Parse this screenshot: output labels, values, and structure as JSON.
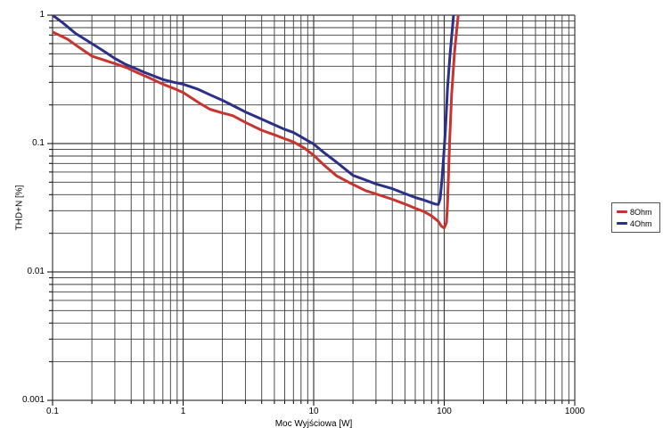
{
  "chart_data": {
    "type": "line",
    "title": "",
    "xlabel": "Moc Wyjściowa [W]",
    "ylabel": "THD+N [%]",
    "x_scale": "log",
    "y_scale": "log",
    "xlim": [
      0.1,
      1000
    ],
    "ylim": [
      0.001,
      1
    ],
    "grid": "log major+minor, both axes, dark thin lines",
    "grid_color": "#3c3c3c",
    "background_color": "#ffffff",
    "legend_position": "right-outside",
    "x_ticks": [
      {
        "value": 0.1,
        "label": "0.1"
      },
      {
        "value": 1,
        "label": "1"
      },
      {
        "value": 10,
        "label": "10"
      },
      {
        "value": 100,
        "label": "100"
      },
      {
        "value": 1000,
        "label": "1000"
      }
    ],
    "y_ticks": [
      {
        "value": 1,
        "label": "1"
      },
      {
        "value": 0.1,
        "label": "0.1"
      },
      {
        "value": 0.01,
        "label": "0.01"
      },
      {
        "value": 0.001,
        "label": "0.001"
      }
    ],
    "series": [
      {
        "name": "8Ohm",
        "color": "#c93430",
        "points": [
          [
            0.1,
            0.74
          ],
          [
            0.13,
            0.65
          ],
          [
            0.16,
            0.56
          ],
          [
            0.2,
            0.48
          ],
          [
            0.25,
            0.445
          ],
          [
            0.3,
            0.42
          ],
          [
            0.37,
            0.39
          ],
          [
            0.45,
            0.355
          ],
          [
            0.55,
            0.325
          ],
          [
            0.7,
            0.29
          ],
          [
            0.85,
            0.268
          ],
          [
            1,
            0.25
          ],
          [
            1.3,
            0.21
          ],
          [
            1.6,
            0.185
          ],
          [
            2,
            0.173
          ],
          [
            2.4,
            0.165
          ],
          [
            3,
            0.146
          ],
          [
            4,
            0.127
          ],
          [
            5,
            0.117
          ],
          [
            6,
            0.109
          ],
          [
            7,
            0.103
          ],
          [
            8.5,
            0.092
          ],
          [
            10,
            0.081
          ],
          [
            12,
            0.068
          ],
          [
            15,
            0.056
          ],
          [
            20,
            0.048
          ],
          [
            25,
            0.043
          ],
          [
            30,
            0.0405
          ],
          [
            40,
            0.0368
          ],
          [
            50,
            0.0338
          ],
          [
            60,
            0.0313
          ],
          [
            70,
            0.0295
          ],
          [
            80,
            0.0273
          ],
          [
            90,
            0.0248
          ],
          [
            95,
            0.0228
          ],
          [
            100,
            0.022
          ],
          [
            104,
            0.0242
          ],
          [
            106,
            0.034
          ],
          [
            108,
            0.06
          ],
          [
            110,
            0.105
          ],
          [
            114,
            0.24
          ],
          [
            120,
            0.52
          ],
          [
            128,
            1.0
          ],
          [
            130,
            1.1
          ]
        ]
      },
      {
        "name": "4Ohm",
        "color": "#2b3088",
        "points": [
          [
            0.1,
            1.0
          ],
          [
            0.12,
            0.87
          ],
          [
            0.15,
            0.72
          ],
          [
            0.2,
            0.6
          ],
          [
            0.25,
            0.52
          ],
          [
            0.3,
            0.46
          ],
          [
            0.36,
            0.415
          ],
          [
            0.43,
            0.385
          ],
          [
            0.5,
            0.36
          ],
          [
            0.6,
            0.335
          ],
          [
            0.7,
            0.315
          ],
          [
            0.85,
            0.3
          ],
          [
            1,
            0.29
          ],
          [
            1.3,
            0.265
          ],
          [
            1.6,
            0.24
          ],
          [
            2,
            0.217
          ],
          [
            2.5,
            0.194
          ],
          [
            3,
            0.176
          ],
          [
            4,
            0.155
          ],
          [
            5,
            0.14
          ],
          [
            6,
            0.129
          ],
          [
            7,
            0.122
          ],
          [
            8,
            0.113
          ],
          [
            10,
            0.099
          ],
          [
            12,
            0.085
          ],
          [
            15,
            0.0715
          ],
          [
            20,
            0.0565
          ],
          [
            25,
            0.052
          ],
          [
            30,
            0.0485
          ],
          [
            40,
            0.0445
          ],
          [
            50,
            0.0408
          ],
          [
            60,
            0.038
          ],
          [
            70,
            0.0363
          ],
          [
            80,
            0.0346
          ],
          [
            85,
            0.0338
          ],
          [
            90,
            0.0335
          ],
          [
            93,
            0.037
          ],
          [
            96,
            0.052
          ],
          [
            99,
            0.08
          ],
          [
            102,
            0.125
          ],
          [
            106,
            0.27
          ],
          [
            111,
            0.5
          ],
          [
            118,
            1.0
          ],
          [
            119,
            1.1
          ]
        ]
      }
    ]
  }
}
